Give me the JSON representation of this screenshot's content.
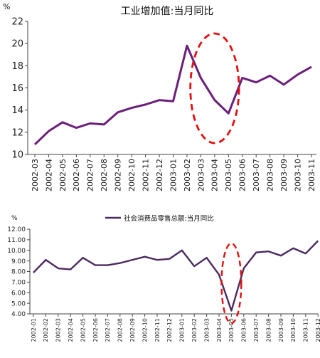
{
  "chart_data": [
    {
      "type": "line",
      "title": "工业增加值:当月同比",
      "unit_label": "%",
      "xlabel": "",
      "ylabel": "",
      "ylim": [
        10,
        22
      ],
      "yticks": [
        "10",
        "12",
        "14",
        "16",
        "18",
        "20",
        "22"
      ],
      "grid": false,
      "legend": "none",
      "categories": [
        "2002-03",
        "2002-04",
        "2002-05",
        "2002-06",
        "2002-07",
        "2002-08",
        "2002-09",
        "2002-10",
        "2002-11",
        "2002-12",
        "2003-01",
        "2003-02",
        "2003-03",
        "2003-04",
        "2003-05",
        "2003-06",
        "2003-07",
        "2003-08",
        "2003-09",
        "2003-10",
        "2003-11"
      ],
      "series": [
        {
          "values": [
            10.9,
            12.1,
            12.9,
            12.4,
            12.8,
            12.7,
            13.8,
            14.2,
            14.5,
            14.9,
            14.8,
            19.8,
            16.9,
            14.9,
            13.7,
            16.9,
            16.5,
            17.1,
            16.3,
            17.2,
            17.9
          ],
          "color": "#6b1f7a"
        }
      ],
      "annotation": {
        "shape": "dashed-ellipse",
        "color": "#e01010",
        "x_range": [
          "2003-02",
          "2003-06"
        ]
      }
    },
    {
      "type": "line",
      "title": "",
      "unit_label": "%",
      "xlabel": "",
      "ylabel": "",
      "ylim": [
        4.0,
        12.0
      ],
      "yticks": [
        "4.00",
        "5.00",
        "6.00",
        "7.00",
        "8.00",
        "9.00",
        "10.00",
        "11.00",
        "12.00"
      ],
      "grid": false,
      "legend": "top-center",
      "categories": [
        "2002-01",
        "2002-02",
        "2002-03",
        "2002-04",
        "2002-05",
        "2002-06",
        "2002-07",
        "2002-08",
        "2002-09",
        "2002-10",
        "2002-11",
        "2002-12",
        "2003-01",
        "2003-02",
        "2003-03",
        "2003-04",
        "2003-05",
        "2003-06",
        "2003-07",
        "2003-08",
        "2003-09",
        "2003-10",
        "2003-11",
        "2003-12"
      ],
      "series": [
        {
          "name": "社会消费品零售总额:当月同比",
          "values": [
            7.9,
            9.1,
            8.3,
            8.2,
            9.3,
            8.6,
            8.6,
            8.8,
            9.1,
            9.4,
            9.1,
            9.2,
            10.0,
            8.5,
            9.3,
            7.7,
            4.3,
            8.3,
            9.8,
            9.9,
            9.5,
            10.2,
            9.7,
            10.9
          ],
          "color": "#4a2a5e"
        }
      ],
      "annotation": {
        "shape": "dashed-ellipse",
        "color": "#e01010",
        "x_range": [
          "2003-04",
          "2003-06"
        ]
      }
    }
  ]
}
